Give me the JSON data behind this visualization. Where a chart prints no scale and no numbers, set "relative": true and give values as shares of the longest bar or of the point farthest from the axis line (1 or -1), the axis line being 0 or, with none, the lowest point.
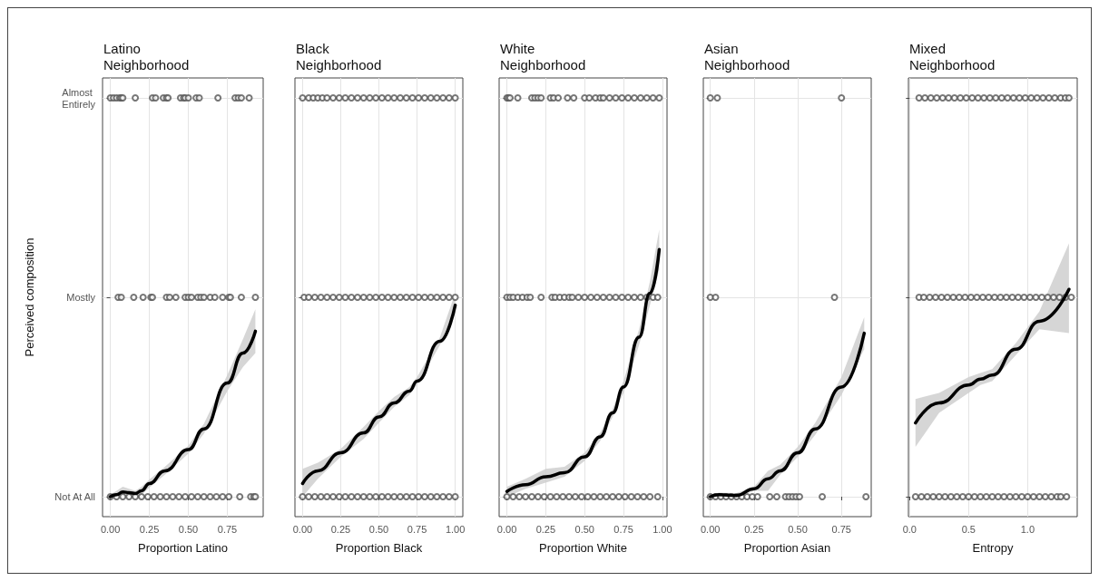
{
  "chart_data": [
    {
      "type": "scatter",
      "title": "Latino Neighborhood",
      "xlabel": "Proportion Latino",
      "ylabel": "Perceived composition",
      "relative": true,
      "xlim": [
        -0.05,
        0.98
      ],
      "xticks": [
        {
          "value": 0,
          "label": "0.00"
        },
        0.25,
        {
          "value": 0.5,
          "label": "0.50"
        },
        0.75
      ],
      "y_categories": [
        "Almost Entirely",
        "Mostly",
        "Not At All"
      ],
      "grid": true,
      "marker": "circle",
      "line_style": "solid",
      "series": [
        {
          "color": "#555555",
          "x": [
            0.0,
            0.02,
            0.04,
            0.06,
            0.07,
            0.08,
            0.16,
            0.27,
            0.29,
            0.34,
            0.36,
            0.37,
            0.45,
            0.47,
            0.48,
            0.5,
            0.55,
            0.57,
            0.69,
            0.8,
            0.82,
            0.84,
            0.89,
            0.05,
            0.07,
            0.15,
            0.21,
            0.26,
            0.27,
            0.36,
            0.38,
            0.42,
            0.48,
            0.5,
            0.52,
            0.56,
            0.58,
            0.6,
            0.64,
            0.67,
            0.72,
            0.76,
            0.77,
            0.84,
            0.93,
            0.0,
            0.04,
            0.08,
            0.12,
            0.16,
            0.2,
            0.24,
            0.28,
            0.32,
            0.36,
            0.4,
            0.44,
            0.48,
            0.52,
            0.56,
            0.6,
            0.64,
            0.68,
            0.72,
            0.76,
            0.83,
            0.9,
            0.92,
            0.93
          ],
          "values": [
            1,
            1,
            1,
            1,
            1,
            1,
            1,
            1,
            1,
            1,
            1,
            1,
            1,
            1,
            1,
            1,
            1,
            1,
            1,
            1,
            1,
            1,
            1,
            0.5,
            0.5,
            0.5,
            0.5,
            0.5,
            0.5,
            0.5,
            0.5,
            0.5,
            0.5,
            0.5,
            0.5,
            0.5,
            0.5,
            0.5,
            0.5,
            0.5,
            0.5,
            0.5,
            0.5,
            0.5,
            0.5,
            0,
            0,
            0,
            0,
            0,
            0,
            0,
            0,
            0,
            0,
            0,
            0,
            0,
            0,
            0,
            0,
            0,
            0,
            0,
            0,
            0,
            0,
            0,
            0
          ]
        },
        {
          "type": "line",
          "marker": "none",
          "color": "#000000",
          "x": [
            0.0,
            0.04,
            0.08,
            0.12,
            0.16,
            0.2,
            0.25,
            0.35,
            0.5,
            0.6,
            0.75,
            0.85,
            0.93
          ],
          "values": [
            0,
            0.005,
            0.012,
            0.01,
            0.008,
            0.015,
            0.033,
            0.065,
            0.118,
            0.17,
            0.285,
            0.36,
            0.415
          ],
          "lower": [
            0,
            0,
            0,
            0,
            0,
            0.005,
            0.023,
            0.055,
            0.108,
            0.158,
            0.265,
            0.325,
            0.36
          ],
          "upper": [
            0.005,
            0.015,
            0.025,
            0.02,
            0.015,
            0.025,
            0.043,
            0.075,
            0.128,
            0.183,
            0.305,
            0.395,
            0.47
          ]
        }
      ]
    },
    {
      "type": "scatter",
      "title": "Black Neighborhood",
      "xlabel": "Proportion Black",
      "relative": true,
      "xlim": [
        -0.05,
        1.05
      ],
      "xticks": [
        {
          "value": 0,
          "label": "0.00"
        },
        0.25,
        {
          "value": 0.5,
          "label": "0.50"
        },
        0.75,
        {
          "value": 1,
          "label": "1.00"
        }
      ],
      "y_categories": [
        null,
        null,
        null
      ],
      "tick_labels": "x",
      "grid": true,
      "marker": "circle",
      "line_style": "solid",
      "series": [
        {
          "color": "#555555",
          "x": [
            0.0,
            0.04,
            0.07,
            0.1,
            0.13,
            0.16,
            0.2,
            0.24,
            0.28,
            0.32,
            0.36,
            0.4,
            0.44,
            0.48,
            0.52,
            0.56,
            0.6,
            0.64,
            0.68,
            0.72,
            0.76,
            0.8,
            0.84,
            0.88,
            0.92,
            0.96,
            1.0,
            0.01,
            0.04,
            0.08,
            0.12,
            0.16,
            0.2,
            0.24,
            0.28,
            0.32,
            0.36,
            0.4,
            0.44,
            0.48,
            0.52,
            0.56,
            0.6,
            0.64,
            0.68,
            0.72,
            0.76,
            0.8,
            0.84,
            0.88,
            0.92,
            0.96,
            1.0,
            0.0,
            0.04,
            0.08,
            0.12,
            0.16,
            0.2,
            0.24,
            0.28,
            0.32,
            0.36,
            0.4,
            0.44,
            0.48,
            0.52,
            0.56,
            0.6,
            0.64,
            0.68,
            0.72,
            0.76,
            0.8,
            0.84,
            0.88,
            0.92,
            0.96,
            1.0
          ],
          "values": [
            1,
            1,
            1,
            1,
            1,
            1,
            1,
            1,
            1,
            1,
            1,
            1,
            1,
            1,
            1,
            1,
            1,
            1,
            1,
            1,
            1,
            1,
            1,
            1,
            1,
            1,
            1,
            0.5,
            0.5,
            0.5,
            0.5,
            0.5,
            0.5,
            0.5,
            0.5,
            0.5,
            0.5,
            0.5,
            0.5,
            0.5,
            0.5,
            0.5,
            0.5,
            0.5,
            0.5,
            0.5,
            0.5,
            0.5,
            0.5,
            0.5,
            0.5,
            0.5,
            0.5,
            0,
            0,
            0,
            0,
            0,
            0,
            0,
            0,
            0,
            0,
            0,
            0,
            0,
            0,
            0,
            0,
            0,
            0,
            0,
            0,
            0,
            0,
            0,
            0,
            0,
            0
          ]
        },
        {
          "type": "line",
          "marker": "none",
          "color": "#000000",
          "x": [
            0.0,
            0.1,
            0.25,
            0.4,
            0.5,
            0.6,
            0.7,
            0.75,
            0.9,
            1.0
          ],
          "values": [
            0.033,
            0.065,
            0.11,
            0.16,
            0.2,
            0.235,
            0.265,
            0.29,
            0.39,
            0.48
          ],
          "lower": [
            0,
            0.045,
            0.1,
            0.145,
            0.185,
            0.225,
            0.255,
            0.28,
            0.38,
            0.46
          ],
          "upper": [
            0.07,
            0.085,
            0.12,
            0.175,
            0.215,
            0.25,
            0.275,
            0.3,
            0.4,
            0.51
          ]
        }
      ]
    },
    {
      "type": "scatter",
      "title": "White Neighborhood",
      "xlabel": "Proportion White",
      "relative": true,
      "xlim": [
        -0.05,
        1.03
      ],
      "xticks": [
        {
          "value": 0,
          "label": "0.00"
        },
        0.25,
        {
          "value": 0.5,
          "label": "0.50"
        },
        0.75,
        {
          "value": 1,
          "label": "1.00"
        }
      ],
      "y_categories": [
        null,
        null,
        null
      ],
      "tick_labels": "x",
      "grid": true,
      "marker": "circle",
      "line_style": "solid",
      "series": [
        {
          "color": "#555555",
          "x": [
            0.0,
            0.01,
            0.02,
            0.07,
            0.16,
            0.18,
            0.2,
            0.22,
            0.28,
            0.3,
            0.33,
            0.39,
            0.43,
            0.5,
            0.53,
            0.57,
            0.6,
            0.62,
            0.66,
            0.7,
            0.74,
            0.78,
            0.82,
            0.86,
            0.9,
            0.94,
            0.98,
            0.0,
            0.02,
            0.04,
            0.07,
            0.1,
            0.13,
            0.15,
            0.22,
            0.29,
            0.31,
            0.34,
            0.37,
            0.4,
            0.42,
            0.46,
            0.5,
            0.54,
            0.58,
            0.62,
            0.66,
            0.7,
            0.74,
            0.78,
            0.82,
            0.86,
            0.9,
            0.94,
            0.97,
            0.0,
            0.04,
            0.08,
            0.12,
            0.16,
            0.2,
            0.24,
            0.28,
            0.32,
            0.36,
            0.4,
            0.44,
            0.48,
            0.52,
            0.56,
            0.6,
            0.64,
            0.68,
            0.72,
            0.76,
            0.8,
            0.84,
            0.88,
            0.92,
            0.97
          ],
          "values": [
            1,
            1,
            1,
            1,
            1,
            1,
            1,
            1,
            1,
            1,
            1,
            1,
            1,
            1,
            1,
            1,
            1,
            1,
            1,
            1,
            1,
            1,
            1,
            1,
            1,
            1,
            1,
            0.5,
            0.5,
            0.5,
            0.5,
            0.5,
            0.5,
            0.5,
            0.5,
            0.5,
            0.5,
            0.5,
            0.5,
            0.5,
            0.5,
            0.5,
            0.5,
            0.5,
            0.5,
            0.5,
            0.5,
            0.5,
            0.5,
            0.5,
            0.5,
            0.5,
            0.5,
            0.5,
            0.5,
            0,
            0,
            0,
            0,
            0,
            0,
            0,
            0,
            0,
            0,
            0,
            0,
            0,
            0,
            0,
            0,
            0,
            0,
            0,
            0,
            0,
            0,
            0,
            0,
            0
          ]
        },
        {
          "type": "line",
          "marker": "none",
          "color": "#000000",
          "x": [
            0.0,
            0.12,
            0.25,
            0.37,
            0.5,
            0.6,
            0.68,
            0.75,
            0.85,
            0.92,
            0.98
          ],
          "values": [
            0.013,
            0.03,
            0.05,
            0.06,
            0.1,
            0.15,
            0.21,
            0.275,
            0.4,
            0.51,
            0.62
          ],
          "lower": [
            0,
            0.02,
            0.035,
            0.05,
            0.09,
            0.14,
            0.2,
            0.26,
            0.38,
            0.48,
            0.57
          ],
          "upper": [
            0.025,
            0.045,
            0.07,
            0.075,
            0.11,
            0.16,
            0.22,
            0.29,
            0.42,
            0.54,
            0.67
          ]
        }
      ]
    },
    {
      "type": "scatter",
      "title": "Asian Neighborhood",
      "xlabel": "Proportion Asian",
      "relative": true,
      "xlim": [
        -0.04,
        0.92
      ],
      "xticks": [
        {
          "value": 0,
          "label": "0.00"
        },
        0.25,
        {
          "value": 0.5,
          "label": "0.50"
        },
        0.75
      ],
      "y_categories": [
        null,
        null,
        null
      ],
      "tick_labels": "x",
      "grid": true,
      "marker": "circle",
      "line_style": "solid",
      "series": [
        {
          "color": "#555555",
          "x": [
            0.0,
            0.04,
            0.75,
            0.0,
            0.03,
            0.71,
            0.0,
            0.03,
            0.06,
            0.09,
            0.12,
            0.15,
            0.18,
            0.21,
            0.24,
            0.27,
            0.34,
            0.38,
            0.43,
            0.45,
            0.47,
            0.49,
            0.51,
            0.64,
            0.89
          ],
          "values": [
            1,
            1,
            1,
            0.5,
            0.5,
            0.5,
            0,
            0,
            0,
            0,
            0,
            0,
            0,
            0,
            0,
            0,
            0,
            0,
            0,
            0,
            0,
            0,
            0,
            0,
            0
          ]
        },
        {
          "type": "line",
          "marker": "none",
          "color": "#000000",
          "x": [
            0.0,
            0.05,
            0.15,
            0.25,
            0.33,
            0.4,
            0.5,
            0.6,
            0.75,
            0.88
          ],
          "values": [
            0,
            0.005,
            0.003,
            0.02,
            0.045,
            0.065,
            0.11,
            0.17,
            0.275,
            0.41
          ],
          "lower": [
            0,
            0,
            0,
            0.015,
            0.015,
            0.055,
            0.1,
            0.155,
            0.255,
            0.37
          ],
          "upper": [
            0.005,
            0.01,
            0.009,
            0.025,
            0.065,
            0.08,
            0.125,
            0.185,
            0.3,
            0.45
          ]
        }
      ]
    },
    {
      "type": "scatter",
      "title": "Mixed Neighborhood",
      "xlabel": "Entropy",
      "relative": true,
      "xlim": [
        -0.01,
        1.42
      ],
      "xticks": [
        {
          "value": 0,
          "label": "0.0"
        },
        0.5,
        {
          "value": 1,
          "label": "1.0"
        }
      ],
      "y_categories": [
        null,
        null,
        null
      ],
      "tick_labels": "x",
      "grid": true,
      "marker": "circle",
      "line_style": "solid",
      "series": [
        {
          "color": "#555555",
          "x": [
            0.08,
            0.13,
            0.18,
            0.23,
            0.28,
            0.33,
            0.38,
            0.43,
            0.48,
            0.53,
            0.58,
            0.63,
            0.68,
            0.73,
            0.78,
            0.83,
            0.88,
            0.93,
            0.98,
            1.03,
            1.08,
            1.13,
            1.18,
            1.23,
            1.28,
            1.32,
            1.35,
            0.08,
            0.12,
            0.17,
            0.22,
            0.27,
            0.32,
            0.37,
            0.42,
            0.47,
            0.52,
            0.57,
            0.62,
            0.67,
            0.72,
            0.77,
            0.82,
            0.87,
            0.92,
            0.97,
            1.02,
            1.07,
            1.12,
            1.17,
            1.22,
            1.27,
            1.32,
            1.37,
            0.05,
            0.1,
            0.15,
            0.2,
            0.25,
            0.3,
            0.35,
            0.4,
            0.45,
            0.5,
            0.55,
            0.6,
            0.65,
            0.7,
            0.75,
            0.8,
            0.85,
            0.9,
            0.95,
            1.0,
            1.05,
            1.1,
            1.15,
            1.2,
            1.25,
            1.28,
            1.33
          ],
          "values": [
            1,
            1,
            1,
            1,
            1,
            1,
            1,
            1,
            1,
            1,
            1,
            1,
            1,
            1,
            1,
            1,
            1,
            1,
            1,
            1,
            1,
            1,
            1,
            1,
            1,
            1,
            1,
            0.5,
            0.5,
            0.5,
            0.5,
            0.5,
            0.5,
            0.5,
            0.5,
            0.5,
            0.5,
            0.5,
            0.5,
            0.5,
            0.5,
            0.5,
            0.5,
            0.5,
            0.5,
            0.5,
            0.5,
            0.5,
            0.5,
            0.5,
            0.5,
            0.5,
            0.5,
            0.5,
            0,
            0,
            0,
            0,
            0,
            0,
            0,
            0,
            0,
            0,
            0,
            0,
            0,
            0,
            0,
            0,
            0,
            0,
            0,
            0,
            0,
            0,
            0,
            0,
            0,
            0,
            0
          ]
        },
        {
          "type": "line",
          "marker": "none",
          "color": "#000000",
          "x": [
            0.05,
            0.25,
            0.5,
            0.6,
            0.7,
            0.9,
            1.1,
            1.35
          ],
          "values": [
            0.185,
            0.235,
            0.28,
            0.295,
            0.305,
            0.37,
            0.44,
            0.52
          ],
          "lower": [
            0.125,
            0.21,
            0.26,
            0.28,
            0.29,
            0.355,
            0.42,
            0.41
          ],
          "upper": [
            0.245,
            0.26,
            0.3,
            0.31,
            0.32,
            0.385,
            0.465,
            0.635
          ]
        }
      ]
    }
  ]
}
